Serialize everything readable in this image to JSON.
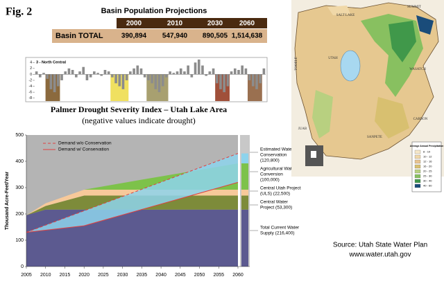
{
  "figure_label": "Fig. 2",
  "table": {
    "title": "Basin Population Projections",
    "columns": [
      "2000",
      "2010",
      "2030",
      "2060"
    ],
    "rows": [
      [
        "Basin TOTAL",
        "390,894",
        "547,940",
        "890,505",
        "1,514,638"
      ]
    ]
  },
  "chart_data": [
    {
      "type": "bar",
      "label": "3 - North Central",
      "title": "Palmer Drought Severity Index – Utah Lake Area",
      "subtitle": "(negative values indicate drought)",
      "values": [
        1,
        -1,
        0.5,
        -1.5,
        -5,
        -6,
        -4,
        -2,
        1,
        2,
        1.5,
        -1,
        1,
        2.5,
        -2,
        -1,
        1,
        0.5,
        -0.5,
        1.5,
        1,
        -1,
        -3,
        -4,
        -5,
        -2,
        1,
        2,
        3,
        2,
        -1,
        -2,
        -3,
        -5,
        -6,
        -4,
        -1,
        1,
        0.5,
        1,
        2,
        1,
        3,
        -1,
        4,
        5,
        3,
        -0.5,
        1,
        2,
        -3,
        -5,
        -6,
        -4,
        1,
        2,
        1.5,
        3,
        2,
        -2,
        -4,
        -5,
        -3,
        2
      ],
      "color": "#8c8c8c",
      "ylim": [
        -9,
        5
      ],
      "yticks": [
        -8,
        -6,
        -4,
        -2,
        0,
        2,
        4
      ],
      "shaded_periods": [
        {
          "from": 3,
          "to": 6,
          "color": "#8b6a3e"
        },
        {
          "from": 21,
          "to": 25,
          "color": "#f0e060"
        },
        {
          "from": 31,
          "to": 36,
          "color": "#a8a070"
        },
        {
          "from": 50,
          "to": 53,
          "color": "#a0503a"
        },
        {
          "from": 59,
          "to": 62,
          "color": "#9a7050"
        }
      ]
    },
    {
      "type": "area",
      "ylabel": "Thousand Acre-Feet/Year",
      "x": [
        2005,
        2010,
        2020,
        2035,
        2060
      ],
      "series": [
        {
          "color": "#5c5a90",
          "values": [
            195,
            216.4,
            216.4,
            216.4,
            216.4
          ]
        },
        {
          "color": "#7d8b3a",
          "values": [
            0,
            14,
            53.3,
            53.3,
            53.3
          ]
        },
        {
          "color": "#f7c99a",
          "values": [
            0,
            10,
            22.5,
            22.5,
            22.5
          ]
        },
        {
          "color": "#7dc24a",
          "values": [
            0,
            0,
            0,
            38,
            100
          ]
        }
      ],
      "lines": [
        {
          "name": "Demand w/o Conservation",
          "color": "#e04040",
          "dashed": true,
          "x": [
            2005,
            2060
          ],
          "values": [
            130,
            430
          ]
        },
        {
          "name": "Demand w/ Conservation",
          "color": "#e04040",
          "dashed": false,
          "x": [
            2005,
            2020,
            2060
          ],
          "values": [
            130,
            155,
            320
          ]
        }
      ],
      "conservation_color": "#8dd3ec",
      "xlim": [
        2005,
        2060
      ],
      "xticks": [
        2005,
        2010,
        2015,
        2020,
        2025,
        2030,
        2035,
        2040,
        2045,
        2050,
        2055,
        2060
      ],
      "ylim": [
        0,
        500
      ],
      "yticks": [
        0,
        100,
        200,
        300,
        400,
        500
      ],
      "annotations": [
        [
          "Estimated Water",
          "Conservation",
          "(120,800)"
        ],
        [
          "Agricultural Water",
          "Conversion",
          "(100,000)"
        ],
        [
          "Central Utah Project",
          "(ULS) (22,500)"
        ],
        [
          "Central Water",
          "Project  (53,300)"
        ],
        [
          "Total Current Water",
          "Supply (216,400)"
        ]
      ]
    }
  ],
  "map": {
    "labels": [
      "SALT LAKE",
      "SUMMIT",
      "UTAH",
      "WASATCH",
      "TOOELE",
      "JUAB",
      "SANPETE",
      "CARBON"
    ],
    "legend": {
      "title": "Average Annual Precipitation",
      "ranges": [
        "8 - 10",
        "10 - 12",
        "12 - 16",
        "16 - 20",
        "20 - 25",
        "25 - 30",
        "30 - 40",
        "40 - 60"
      ],
      "colors": [
        "#f6e8c8",
        "#f0d8a8",
        "#e8c490",
        "#d8c070",
        "#b8d080",
        "#88c060",
        "#40984a",
        "#1a4c7a"
      ]
    }
  },
  "source": [
    "Source:  Utah State Water Plan",
    "www.water.utah.gov"
  ]
}
